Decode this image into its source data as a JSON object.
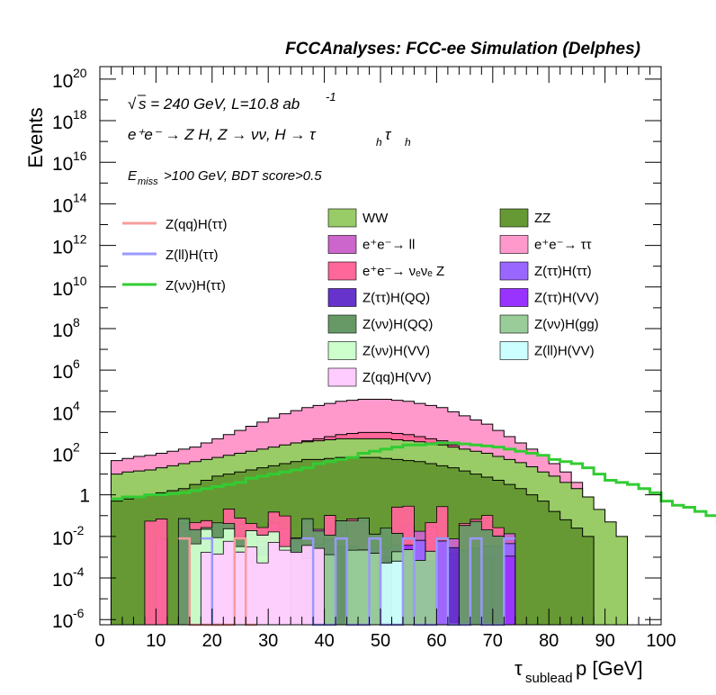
{
  "header": "FCCAnalyses: FCC-ee Simulation (Delphes)",
  "annotations": {
    "sqrt_s": "s = 240 GeV, L=10.8 ab",
    "lumi_exp": "-1",
    "process": "e⁺e⁻ → Z H, Z → νν, H → τ",
    "process_h1": "h",
    "process_tau2": "τ",
    "process_h2": "h",
    "cuts_main": "E",
    "cuts_sub": "miss",
    "cuts_rest": ">100 GeV, BDT score>0.5"
  },
  "axes": {
    "ylabel": "Events",
    "xlabel_tau": "τ",
    "xlabel_sub": "sublead",
    "xlabel_rest": " p [GeV]",
    "xticks": [
      "0",
      "10",
      "20",
      "30",
      "40",
      "50",
      "60",
      "70",
      "80",
      "90",
      "100"
    ],
    "yticks": [
      {
        "exp": -6,
        "label": "10",
        "sup": "-6"
      },
      {
        "exp": -4,
        "label": "10",
        "sup": "-4"
      },
      {
        "exp": -2,
        "label": "10",
        "sup": "-2"
      },
      {
        "exp": 0,
        "label": "1",
        "sup": ""
      },
      {
        "exp": 2,
        "label": "10",
        "sup": "2"
      },
      {
        "exp": 4,
        "label": "10",
        "sup": "4"
      },
      {
        "exp": 6,
        "label": "10",
        "sup": "6"
      },
      {
        "exp": 8,
        "label": "10",
        "sup": "8"
      },
      {
        "exp": 10,
        "label": "10",
        "sup": "10"
      },
      {
        "exp": 12,
        "label": "10",
        "sup": "12"
      },
      {
        "exp": 14,
        "label": "10",
        "sup": "14"
      },
      {
        "exp": 16,
        "label": "10",
        "sup": "16"
      },
      {
        "exp": 18,
        "label": "10",
        "sup": "18"
      },
      {
        "exp": 20,
        "label": "10",
        "sup": "20"
      }
    ]
  },
  "legend_signal": [
    {
      "label": "Z(qq)H(ττ)",
      "color": "#f89c9c"
    },
    {
      "label": "Z(ll)H(ττ)",
      "color": "#9999ff"
    },
    {
      "label": "Z(νν)H(ττ)",
      "color": "#33cc33"
    }
  ],
  "legend_bkg": [
    {
      "label": "WW",
      "color": "#99cc66"
    },
    {
      "label": "ZZ",
      "color": "#669933"
    },
    {
      "label": "e⁺e⁻→ ll",
      "color": "#cc66cc"
    },
    {
      "label": "e⁺e⁻→ ττ",
      "color": "#ff99cc"
    },
    {
      "label": "e⁺e⁻→ νₑνₑ Z",
      "color": "#ff6699"
    },
    {
      "label": "Z(ττ)H(ττ)",
      "color": "#9966ff"
    },
    {
      "label": "Z(ττ)H(QQ)",
      "color": "#6633cc"
    },
    {
      "label": "Z(ττ)H(VV)",
      "color": "#9933ff"
    },
    {
      "label": "Z(νν)H(QQ)",
      "color": "#669966"
    },
    {
      "label": "Z(νν)H(gg)",
      "color": "#99cc99"
    },
    {
      "label": "Z(νν)H(VV)",
      "color": "#ccffcc"
    },
    {
      "label": "Z(ll)H(VV)",
      "color": "#ccffff"
    },
    {
      "label": "Z(qq)H(VV)",
      "color": "#ffccff"
    }
  ],
  "chart_data": {
    "type": "area",
    "title": "FCCAnalyses: FCC-ee Simulation (Delphes)",
    "xlabel": "τ_sublead p [GeV]",
    "ylabel": "Events",
    "log_y": true,
    "xlim": [
      0,
      100
    ],
    "ylim": [
      1e-06,
      3e+20
    ],
    "bin_edges_start": 2,
    "bin_width": 2,
    "stacked_backgrounds_cumulative_log10": {
      "ZZ": [
        -0.3,
        -0.2,
        -0.1,
        0.0,
        0.1,
        0.2,
        0.3,
        0.5,
        0.7,
        0.9,
        1.0,
        1.1,
        1.2,
        1.3,
        1.4,
        1.5,
        1.6,
        1.7,
        1.7,
        1.75,
        1.8,
        1.8,
        1.8,
        1.8,
        1.75,
        1.7,
        1.65,
        1.6,
        1.5,
        1.4,
        1.3,
        1.15,
        1.0,
        0.85,
        0.7,
        0.5,
        0.3,
        0.0,
        -0.3,
        -0.8,
        -1.2,
        -1.6,
        -2.0
      ],
      "WW": [
        1.0,
        1.1,
        1.15,
        1.2,
        1.3,
        1.4,
        1.5,
        1.6,
        1.7,
        1.8,
        1.9,
        2.0,
        2.1,
        2.2,
        2.3,
        2.4,
        2.5,
        2.55,
        2.6,
        2.65,
        2.7,
        2.7,
        2.7,
        2.7,
        2.7,
        2.65,
        2.6,
        2.55,
        2.5,
        2.4,
        2.3,
        2.2,
        2.1,
        2.0,
        1.85,
        1.7,
        1.55,
        1.35,
        1.1,
        0.9,
        0.6,
        0.3,
        -0.1,
        -0.7,
        -1.3,
        -2.0
      ],
      "ee_tautau_total": [
        1.65,
        1.75,
        1.85,
        1.9,
        2.0,
        2.1,
        2.2,
        2.3,
        2.5,
        2.7,
        2.9,
        3.1,
        3.3,
        3.5,
        3.7,
        3.9,
        4.05,
        4.2,
        4.3,
        4.4,
        4.5,
        4.55,
        4.6,
        4.6,
        4.6,
        4.55,
        4.5,
        4.4,
        4.3,
        4.2,
        4.0,
        3.8,
        3.6,
        3.4,
        3.1,
        2.8,
        2.5,
        2.2,
        1.9,
        1.5,
        1.1,
        0.6
      ]
    },
    "signal_Zvv_H_tautau_log10": [
      -0.2,
      -0.1,
      -0.1,
      0.0,
      0.0,
      0.05,
      0.1,
      0.2,
      0.3,
      0.4,
      0.5,
      0.6,
      0.8,
      0.9,
      1.0,
      1.1,
      1.2,
      1.3,
      1.5,
      1.6,
      1.7,
      1.8,
      2.0,
      2.1,
      2.2,
      2.3,
      2.4,
      2.4,
      2.45,
      2.5,
      2.5,
      2.45,
      2.4,
      2.35,
      2.3,
      2.2,
      2.1,
      2.0,
      1.9,
      1.7,
      1.6,
      1.5,
      1.3,
      1.0,
      0.7,
      0.6,
      0.5,
      0.3,
      0.1,
      -0.3,
      -0.5,
      -0.6,
      -0.8,
      -1.0,
      -1.3,
      -6,
      -6,
      -2.0,
      -6
    ]
  }
}
